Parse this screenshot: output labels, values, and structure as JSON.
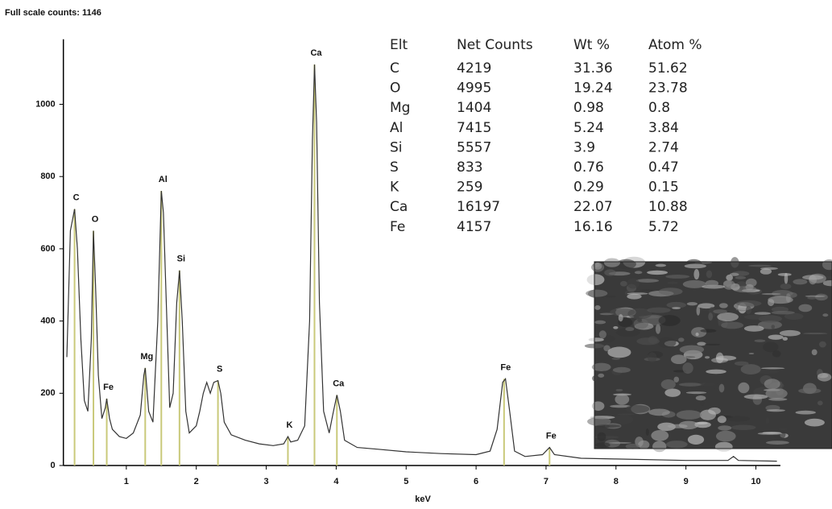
{
  "chart_data": {
    "type": "line",
    "title": "Full scale counts: 1146",
    "x_label": "keV",
    "xlim": [
      0.1,
      10.35
    ],
    "xticks": [
      1,
      2,
      3,
      4,
      5,
      6,
      7,
      8,
      9,
      10
    ],
    "ylim": [
      0,
      1180
    ],
    "yticks": [
      0,
      200,
      400,
      600,
      800,
      1000
    ],
    "color": "#333333",
    "marker_color": "#c9c97a",
    "x": [
      0.15,
      0.2,
      0.26,
      0.3,
      0.35,
      0.4,
      0.45,
      0.5,
      0.53,
      0.56,
      0.6,
      0.65,
      0.7,
      0.72,
      0.76,
      0.8,
      0.9,
      1.0,
      1.1,
      1.2,
      1.25,
      1.27,
      1.32,
      1.38,
      1.45,
      1.5,
      1.53,
      1.58,
      1.62,
      1.67,
      1.72,
      1.76,
      1.8,
      1.85,
      1.9,
      1.95,
      2.0,
      2.05,
      2.1,
      2.15,
      2.2,
      2.25,
      2.31,
      2.35,
      2.4,
      2.5,
      2.7,
      2.9,
      3.1,
      3.25,
      3.31,
      3.35,
      3.45,
      3.55,
      3.62,
      3.66,
      3.69,
      3.72,
      3.76,
      3.82,
      3.9,
      3.95,
      4.01,
      4.06,
      4.12,
      4.3,
      4.6,
      5.0,
      5.5,
      6.0,
      6.2,
      6.3,
      6.38,
      6.42,
      6.48,
      6.55,
      6.7,
      6.95,
      7.05,
      7.12,
      7.5,
      8.0,
      9.0,
      9.6,
      9.68,
      9.75,
      10.3
    ],
    "values": [
      300,
      650,
      710,
      600,
      350,
      180,
      150,
      350,
      650,
      500,
      250,
      130,
      160,
      185,
      130,
      100,
      80,
      75,
      90,
      140,
      250,
      270,
      150,
      120,
      400,
      760,
      700,
      400,
      160,
      200,
      450,
      540,
      400,
      150,
      90,
      100,
      110,
      150,
      200,
      230,
      200,
      230,
      235,
      200,
      120,
      85,
      70,
      60,
      55,
      60,
      80,
      65,
      70,
      110,
      400,
      900,
      1110,
      950,
      450,
      150,
      90,
      140,
      195,
      150,
      70,
      50,
      45,
      38,
      33,
      30,
      40,
      100,
      230,
      240,
      150,
      40,
      25,
      30,
      50,
      30,
      20,
      18,
      14,
      14,
      25,
      14,
      12
    ],
    "peaks": [
      {
        "label": "C",
        "x": 0.26,
        "y": 710
      },
      {
        "label": "O",
        "x": 0.53,
        "y": 650
      },
      {
        "label": "Fe",
        "x": 0.72,
        "y": 185
      },
      {
        "label": "Mg",
        "x": 1.27,
        "y": 270
      },
      {
        "label": "Al",
        "x": 1.5,
        "y": 760
      },
      {
        "label": "Si",
        "x": 1.76,
        "y": 540
      },
      {
        "label": "S",
        "x": 2.31,
        "y": 235
      },
      {
        "label": "K",
        "x": 3.31,
        "y": 80
      },
      {
        "label": "Ca",
        "x": 3.69,
        "y": 1110
      },
      {
        "label": "Ca",
        "x": 4.01,
        "y": 195
      },
      {
        "label": "Fe",
        "x": 6.4,
        "y": 240
      },
      {
        "label": "Fe",
        "x": 7.05,
        "y": 50
      }
    ],
    "table": {
      "header": [
        "Elt",
        "Net Counts",
        "Wt %",
        "Atom %"
      ],
      "rows": [
        [
          "C",
          "4219",
          "31.36",
          "51.62"
        ],
        [
          "O",
          "4995",
          "19.24",
          "23.78"
        ],
        [
          "Mg",
          "1404",
          "0.98",
          "0.8"
        ],
        [
          "Al",
          "7415",
          "5.24",
          "3.84"
        ],
        [
          "Si",
          "5557",
          "3.9",
          "2.74"
        ],
        [
          "S",
          "833",
          "0.76",
          "0.47"
        ],
        [
          "K",
          "259",
          "0.29",
          "0.15"
        ],
        [
          "Ca",
          "16197",
          "22.07",
          "10.88"
        ],
        [
          "Fe",
          "4157",
          "16.16",
          "5.72"
        ]
      ]
    }
  }
}
